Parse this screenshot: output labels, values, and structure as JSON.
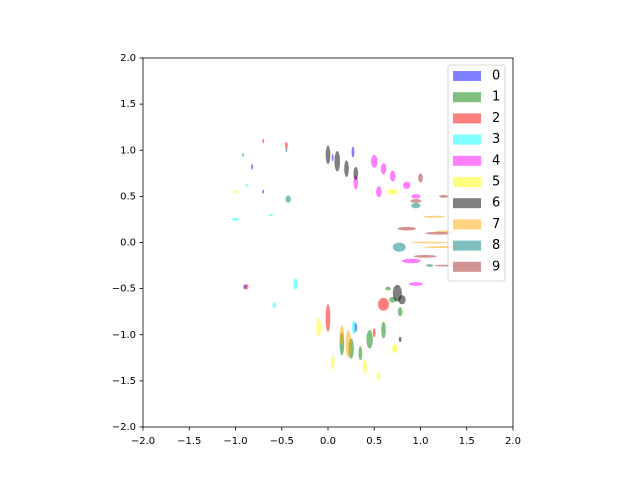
{
  "chart_data": {
    "type": "ellipse",
    "xlim": [
      -2,
      2
    ],
    "ylim": [
      -2,
      2
    ],
    "xticks": [
      {
        "value": -2,
        "label": "−2.0"
      },
      {
        "value": -1.5,
        "label": "−1.5"
      },
      {
        "value": -1,
        "label": "−1.0"
      },
      {
        "value": -0.5,
        "label": "−0.5"
      },
      {
        "value": 0,
        "label": "0.0"
      },
      {
        "value": 0.5,
        "label": "0.5"
      },
      {
        "value": 1,
        "label": "1.0"
      },
      {
        "value": 1.5,
        "label": "1.5"
      },
      {
        "value": 2,
        "label": "2.0"
      }
    ],
    "yticks": [
      {
        "value": -2,
        "label": "−2.0"
      },
      {
        "value": -1.5,
        "label": "−1.5"
      },
      {
        "value": -1,
        "label": "−1.0"
      },
      {
        "value": -0.5,
        "label": "−0.5"
      },
      {
        "value": 0,
        "label": "0.0"
      },
      {
        "value": 0.5,
        "label": "0.5"
      },
      {
        "value": 1,
        "label": "1.0"
      },
      {
        "value": 1.5,
        "label": "1.5"
      },
      {
        "value": 2,
        "label": "2.0"
      }
    ],
    "grid": false,
    "legend": "upper right",
    "alpha": 0.5,
    "series": [
      {
        "name": "0",
        "color": "blue",
        "x": [
          0.27,
          -0.82,
          -0.9,
          0.3,
          -0.7,
          0.05
        ],
        "y": [
          0.98,
          0.82,
          -0.48,
          -0.92,
          0.55,
          0.92
        ],
        "width": [
          0.03,
          0.02,
          0.03,
          0.03,
          0.02,
          0.02
        ],
        "height": [
          0.12,
          0.06,
          0.05,
          0.1,
          0.04,
          0.08
        ]
      },
      {
        "name": "1",
        "color": "green",
        "x": [
          0.15,
          0.25,
          0.45,
          0.6,
          0.7,
          0.78,
          0.65,
          0.35
        ],
        "y": [
          -1.1,
          -1.15,
          -1.05,
          -0.95,
          -0.62,
          -0.75,
          -0.5,
          -1.2
        ],
        "width": [
          0.05,
          0.06,
          0.07,
          0.05,
          0.08,
          0.05,
          0.06,
          0.04
        ],
        "height": [
          0.25,
          0.22,
          0.2,
          0.18,
          0.06,
          0.1,
          0.04,
          0.15
        ]
      },
      {
        "name": "2",
        "color": "red",
        "x": [
          0.6,
          -0.45,
          -0.88,
          0.0,
          0.5,
          -0.7
        ],
        "y": [
          -0.67,
          1.05,
          -0.48,
          -0.82,
          -0.98,
          1.1
        ],
        "width": [
          0.12,
          0.03,
          0.04,
          0.05,
          0.03,
          0.02
        ],
        "height": [
          0.14,
          0.08,
          0.06,
          0.3,
          0.1,
          0.05
        ]
      },
      {
        "name": "3",
        "color": "cyan",
        "x": [
          -1.0,
          -0.35,
          -0.58,
          0.28,
          -0.88,
          -0.62
        ],
        "y": [
          0.25,
          -0.45,
          -0.68,
          -0.92,
          0.62,
          0.3
        ],
        "width": [
          0.08,
          0.05,
          0.04,
          0.04,
          0.03,
          0.05
        ],
        "height": [
          0.03,
          0.12,
          0.06,
          0.15,
          0.03,
          0.02
        ]
      },
      {
        "name": "4",
        "color": "magenta",
        "x": [
          0.5,
          0.6,
          0.7,
          0.85,
          0.95,
          0.3,
          0.55,
          0.95,
          0.9
        ],
        "y": [
          0.88,
          0.8,
          0.72,
          0.62,
          0.5,
          0.65,
          0.55,
          -0.45,
          -0.2
        ],
        "width": [
          0.07,
          0.06,
          0.06,
          0.08,
          0.1,
          0.05,
          0.06,
          0.15,
          0.2
        ],
        "height": [
          0.14,
          0.12,
          0.12,
          0.08,
          0.05,
          0.15,
          0.12,
          0.04,
          0.05
        ]
      },
      {
        "name": "5",
        "color": "yellow",
        "x": [
          -0.1,
          0.05,
          0.4,
          0.72,
          -1.0,
          0.7,
          0.55
        ],
        "y": [
          -0.92,
          -1.3,
          -1.35,
          -1.15,
          0.55,
          0.55,
          -1.45
        ],
        "width": [
          0.05,
          0.04,
          0.04,
          0.06,
          0.06,
          0.12,
          0.03
        ],
        "height": [
          0.2,
          0.15,
          0.15,
          0.1,
          0.03,
          0.06,
          0.1
        ]
      },
      {
        "name": "6",
        "color": "black",
        "x": [
          0.0,
          0.1,
          0.2,
          0.3,
          0.75,
          0.8,
          0.78
        ],
        "y": [
          0.95,
          0.88,
          0.8,
          0.75,
          -0.55,
          -0.62,
          -1.05
        ],
        "width": [
          0.05,
          0.06,
          0.05,
          0.05,
          0.1,
          0.08,
          0.03
        ],
        "height": [
          0.2,
          0.22,
          0.18,
          0.14,
          0.18,
          0.1,
          0.06
        ]
      },
      {
        "name": "7",
        "color": "orange",
        "x": [
          1.1,
          1.25,
          1.3,
          1.15,
          0.22,
          0.15
        ],
        "y": [
          0.0,
          -0.05,
          0.12,
          0.28,
          -1.1,
          -1.0
        ],
        "width": [
          0.4,
          0.45,
          0.3,
          0.25,
          0.06,
          0.05
        ],
        "height": [
          0.02,
          0.02,
          0.02,
          0.02,
          0.3,
          0.2
        ]
      },
      {
        "name": "8",
        "color": "teal",
        "x": [
          -0.43,
          0.77,
          0.95,
          -0.92,
          1.1,
          -0.45
        ],
        "y": [
          0.47,
          -0.05,
          0.4,
          0.95,
          -0.25,
          1.0
        ],
        "width": [
          0.06,
          0.14,
          0.1,
          0.02,
          0.08,
          0.02
        ],
        "height": [
          0.08,
          0.1,
          0.06,
          0.04,
          0.03,
          0.04
        ]
      },
      {
        "name": "9",
        "color": "brown",
        "x": [
          0.85,
          1.2,
          1.05,
          1.3,
          1.0,
          0.95,
          1.25
        ],
        "y": [
          0.15,
          0.1,
          -0.15,
          -0.25,
          0.7,
          0.45,
          0.5
        ],
        "width": [
          0.2,
          0.3,
          0.25,
          0.3,
          0.05,
          0.12,
          0.1
        ],
        "height": [
          0.04,
          0.03,
          0.03,
          0.02,
          0.1,
          0.04,
          0.03
        ]
      }
    ]
  }
}
